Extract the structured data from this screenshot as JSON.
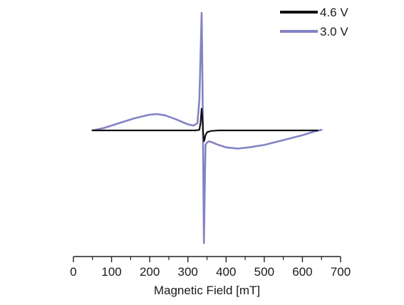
{
  "chart_data": {
    "type": "line",
    "xlabel": "Magnetic Field [mT]",
    "ylabel": "",
    "xlim": [
      0,
      700
    ],
    "ylim": [
      -1.0,
      1.0
    ],
    "x_ticks": [
      0,
      100,
      200,
      300,
      400,
      500,
      600,
      700
    ],
    "y_axis_shown": false,
    "grid": false,
    "legend": {
      "position": "top-right"
    },
    "series": [
      {
        "name": "4.6 V",
        "color": "#111111",
        "x": [
          50,
          100,
          150,
          200,
          250,
          300,
          320,
          330,
          333,
          336,
          338,
          340,
          342,
          344,
          346,
          350,
          360,
          380,
          420,
          500,
          600,
          640
        ],
        "y": [
          0.0,
          0.0,
          0.0,
          0.0,
          0.0,
          0.0,
          0.0,
          0.005,
          0.06,
          0.18,
          0.1,
          -0.02,
          -0.09,
          -0.07,
          -0.04,
          -0.015,
          -0.005,
          0.0,
          0.0,
          0.0,
          0.0,
          0.0
        ]
      },
      {
        "name": "3.0 V",
        "color": "#8383c6",
        "x": [
          50,
          80,
          120,
          160,
          200,
          220,
          240,
          270,
          300,
          315,
          325,
          330,
          333,
          336,
          338,
          340,
          342,
          344,
          346,
          350,
          356,
          365,
          380,
          400,
          430,
          460,
          500,
          550,
          600,
          630,
          650
        ],
        "y": [
          0.0,
          0.02,
          0.06,
          0.1,
          0.13,
          0.135,
          0.125,
          0.09,
          0.05,
          0.04,
          0.06,
          0.25,
          0.6,
          0.97,
          0.45,
          -0.2,
          -0.93,
          -0.5,
          -0.12,
          -0.1,
          -0.09,
          -0.1,
          -0.12,
          -0.14,
          -0.15,
          -0.14,
          -0.12,
          -0.08,
          -0.04,
          -0.01,
          0.005
        ]
      }
    ]
  }
}
